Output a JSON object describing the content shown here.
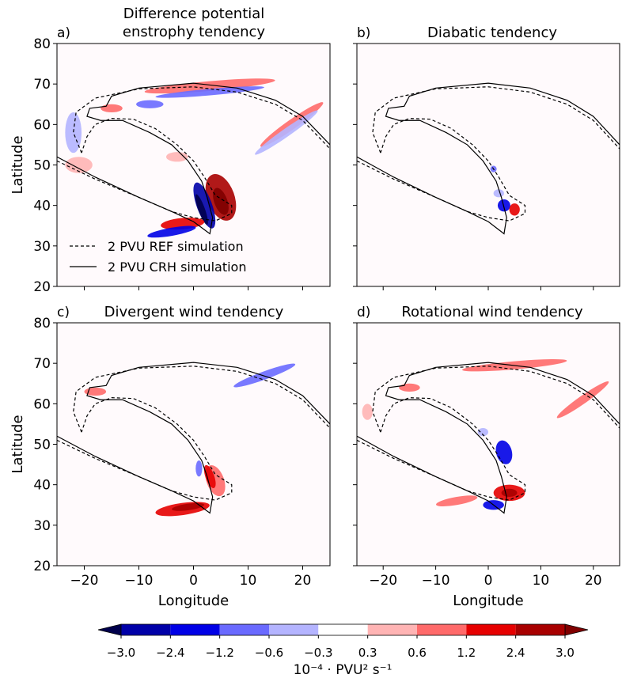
{
  "chart_data": [
    {
      "type": "contour",
      "label": "a)",
      "title": [
        "Difference potential",
        "enstrophy tendency"
      ],
      "xlim": [
        -25,
        25
      ],
      "ylim": [
        20,
        80
      ],
      "xticks": [
        -20,
        -10,
        0,
        10,
        20
      ],
      "yticks": [
        20,
        30,
        40,
        50,
        60,
        70,
        80
      ],
      "ylabel": "Latitude",
      "series": [
        {
          "name": "2 PVU REF simulation",
          "linestyle": "dashed",
          "color": "#000000"
        },
        {
          "name": "2 PVU CRH simulation",
          "linestyle": "solid",
          "color": "#000000"
        }
      ]
    },
    {
      "type": "contour",
      "label": "b)",
      "title": "Diabatic tendency",
      "xlim": [
        -25,
        25
      ],
      "ylim": [
        20,
        80
      ],
      "xticks": [
        -20,
        -10,
        0,
        10,
        20
      ],
      "yticks": [
        20,
        30,
        40,
        50,
        60,
        70,
        80
      ]
    },
    {
      "type": "contour",
      "label": "c)",
      "title": "Divergent wind tendency",
      "xlim": [
        -25,
        25
      ],
      "ylim": [
        20,
        80
      ],
      "xticks": [
        {
          "value": -20,
          "label": "−20"
        },
        {
          "value": -10,
          "label": "−10"
        },
        0,
        10,
        20
      ],
      "yticks": [
        20,
        30,
        40,
        50,
        60,
        70,
        80
      ],
      "xlabel": "Longitude",
      "ylabel": "Latitude"
    },
    {
      "type": "contour",
      "label": "d)",
      "title": "Rotational wind tendency",
      "xlim": [
        -25,
        25
      ],
      "ylim": [
        20,
        80
      ],
      "xticks": [
        {
          "value": -20,
          "label": "−20"
        },
        {
          "value": -10,
          "label": "−10"
        },
        0,
        10,
        20
      ],
      "yticks": [
        20,
        30,
        40,
        50,
        60,
        70,
        80
      ],
      "xlabel": "Longitude"
    },
    {
      "type": "colorbar",
      "label": "10⁻⁴ · PVU² s⁻¹",
      "levels": [
        {
          "value": -3.0,
          "label": "−3.0"
        },
        {
          "value": -2.4,
          "label": "−2.4"
        },
        {
          "value": -1.2,
          "label": "−1.2"
        },
        {
          "value": -0.6,
          "label": "−0.6"
        },
        {
          "value": -0.3,
          "label": "−0.3"
        },
        0.3,
        0.6,
        1.2,
        2.4,
        {
          "value": 3.0,
          "label": "3.0"
        }
      ],
      "colors": [
        "#00004c",
        "#0000a8",
        "#0000e6",
        "#6a6aff",
        "#b4b4ff",
        "#ffffff",
        "#ffb4b4",
        "#ff6a6a",
        "#e60000",
        "#a80000",
        "#800000"
      ]
    }
  ]
}
